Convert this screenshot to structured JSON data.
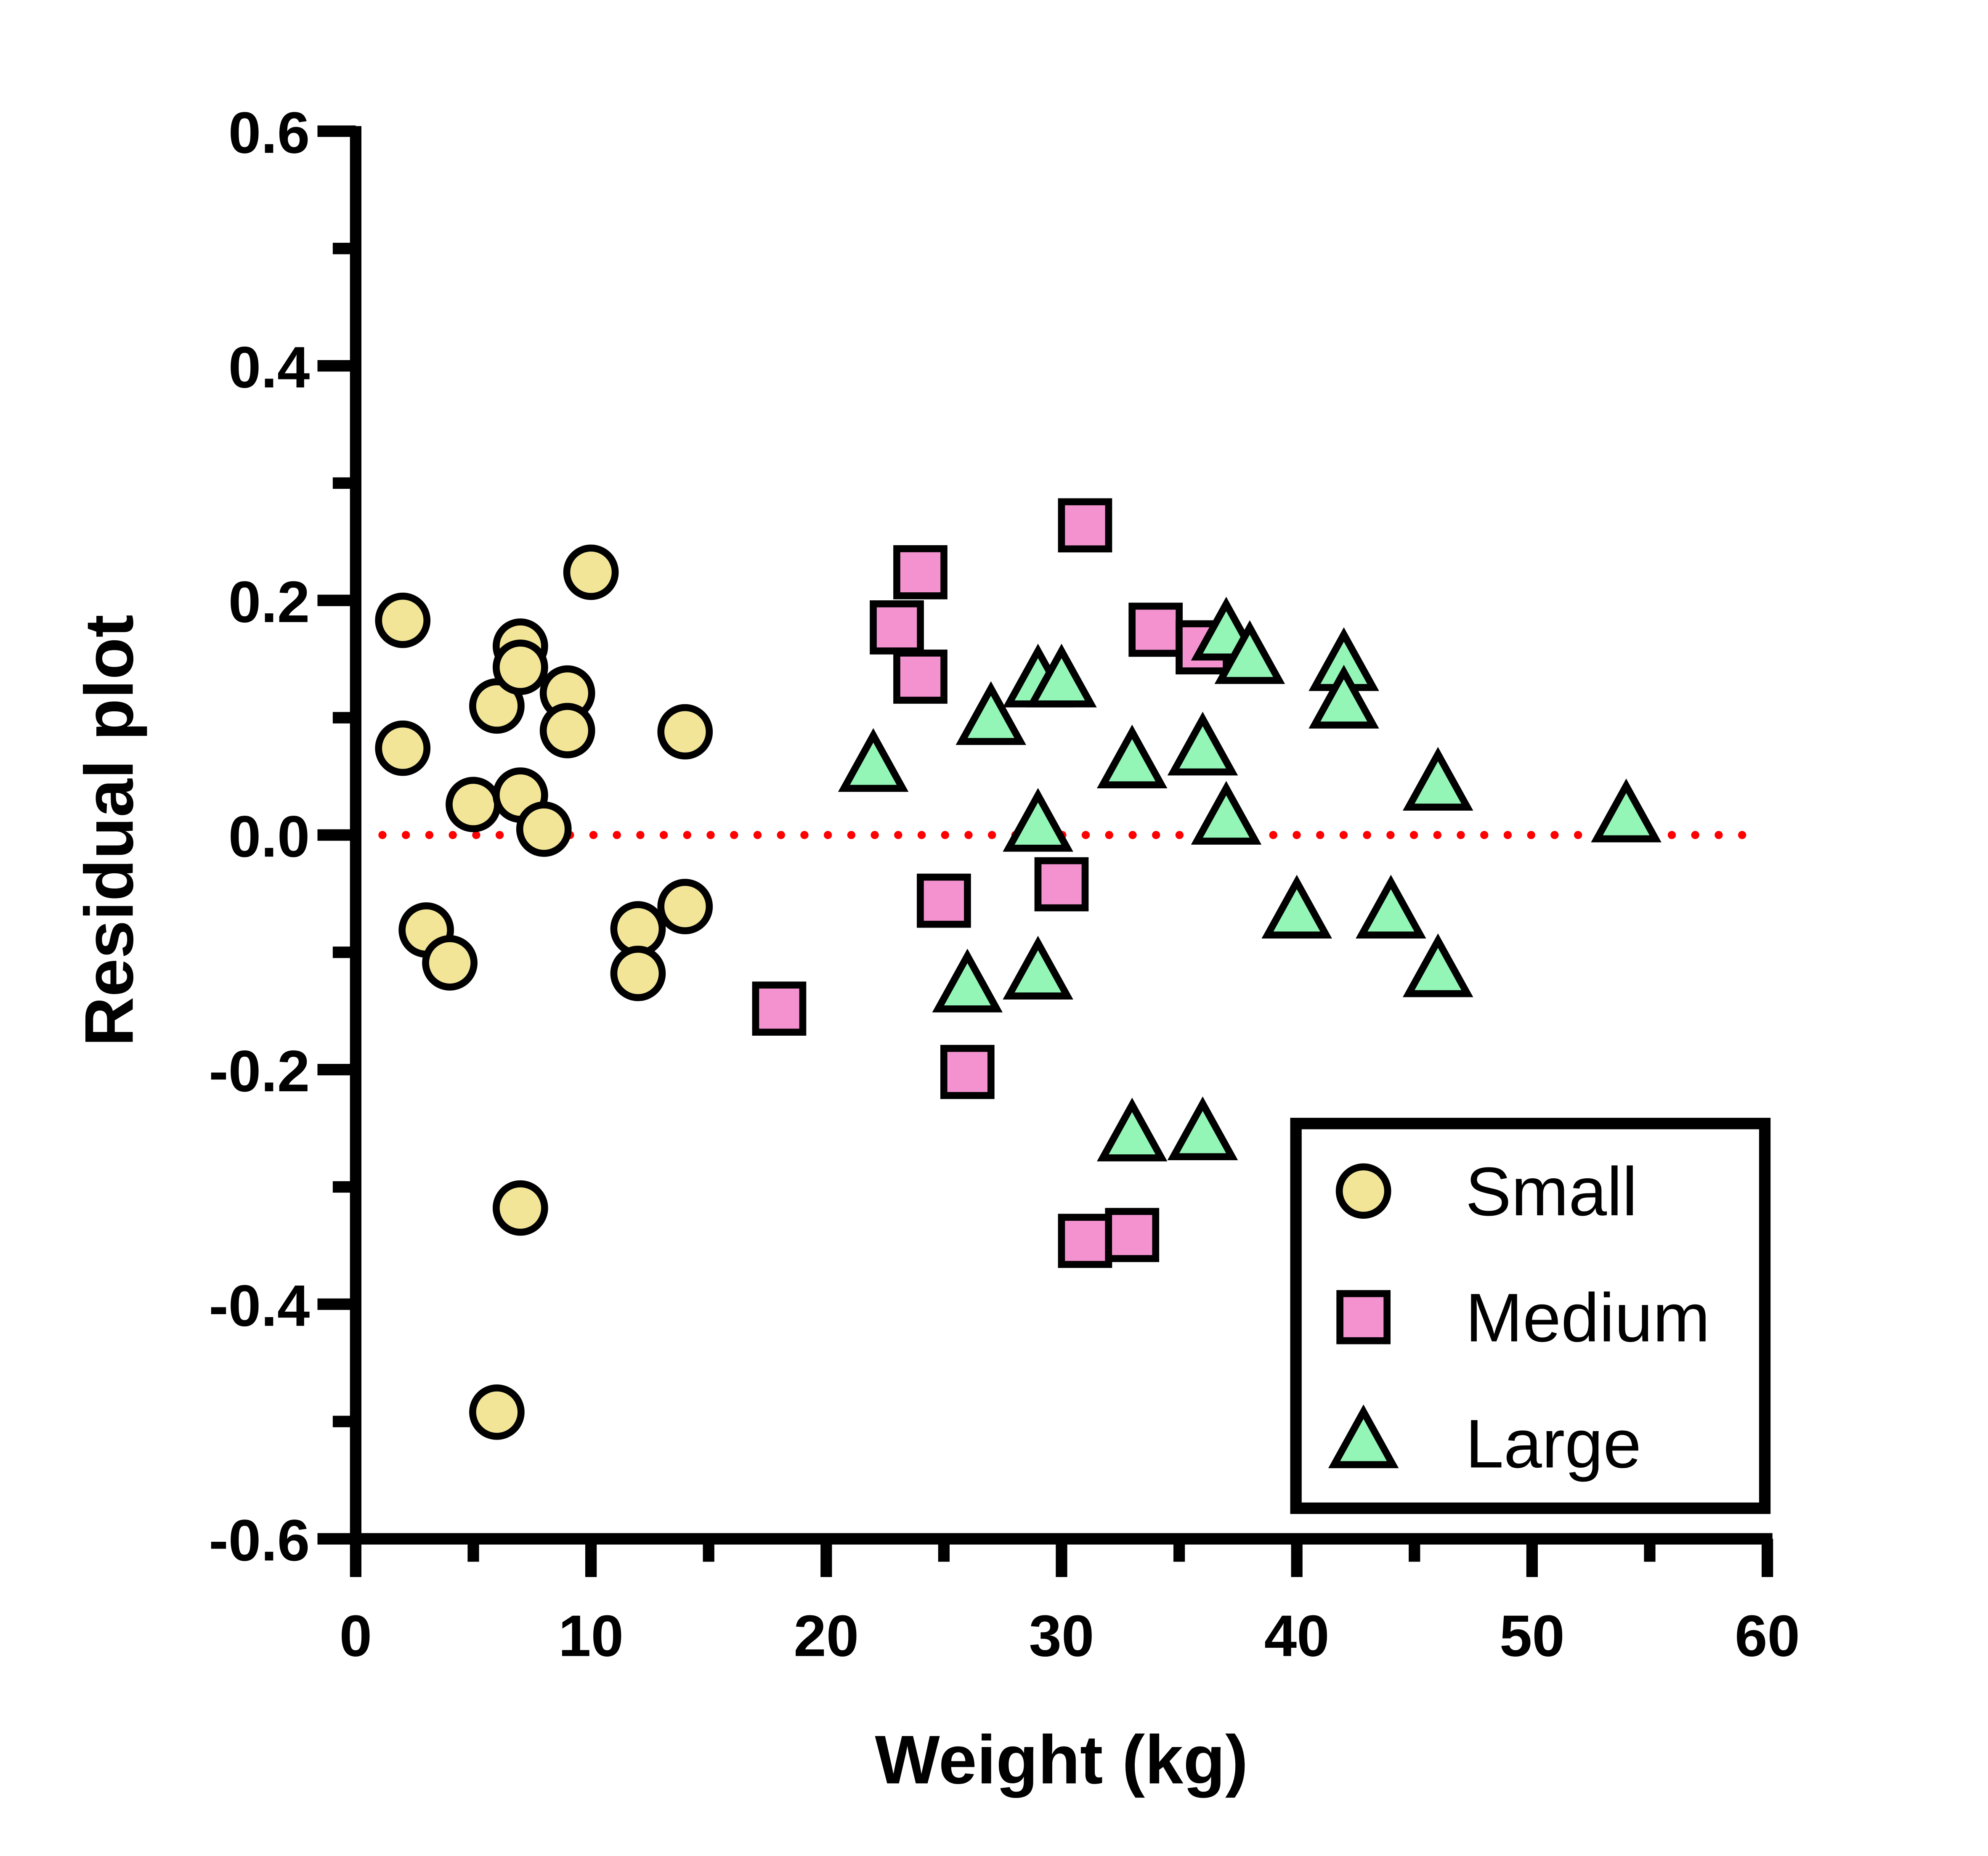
{
  "chart_data": {
    "type": "scatter",
    "title": "",
    "xlabel": "Weight (kg)",
    "ylabel": "Residual plot",
    "xlim": [
      0,
      60
    ],
    "ylim": [
      -0.6,
      0.6
    ],
    "x_ticks": [
      0,
      10,
      20,
      30,
      40,
      50,
      60
    ],
    "x_tick_labels": [
      "0",
      "10",
      "20",
      "30",
      "40",
      "50",
      "60"
    ],
    "y_ticks": [
      -0.6,
      -0.4,
      -0.2,
      0.0,
      0.2,
      0.4,
      0.6
    ],
    "y_tick_labels": [
      "-0.6",
      "-0.4",
      "-0.2",
      "0.0",
      "0.2",
      "0.4",
      "0.6"
    ],
    "grid": false,
    "reference_line": {
      "y": 0.0,
      "style": "dotted",
      "color": "#ff0000"
    },
    "legend": {
      "placement": "bottom-right",
      "boxed": true
    },
    "series": [
      {
        "name": "Small",
        "marker": "circle",
        "fill": "#f3e597",
        "stroke": "#000000",
        "points": [
          [
            2,
            0.183
          ],
          [
            2,
            0.074
          ],
          [
            3,
            -0.081
          ],
          [
            4,
            -0.109
          ],
          [
            5,
            0.026
          ],
          [
            6,
            0.11
          ],
          [
            7,
            0.161
          ],
          [
            7,
            0.143
          ],
          [
            7,
            0.034
          ],
          [
            8,
            0.005
          ],
          [
            9,
            0.121
          ],
          [
            9,
            0.089
          ],
          [
            10,
            0.224
          ],
          [
            12,
            -0.08
          ],
          [
            12,
            -0.118
          ],
          [
            14,
            0.088
          ],
          [
            14,
            -0.061
          ],
          [
            7,
            -0.318
          ],
          [
            6,
            -0.492
          ]
        ]
      },
      {
        "name": "Medium",
        "marker": "square",
        "fill": "#f492d0",
        "stroke": "#000000",
        "points": [
          [
            24,
            0.224
          ],
          [
            23,
            0.177
          ],
          [
            24,
            0.135
          ],
          [
            31,
            0.264
          ],
          [
            34,
            0.175
          ],
          [
            36,
            0.16
          ],
          [
            25,
            -0.056
          ],
          [
            30,
            -0.042
          ],
          [
            18,
            -0.148
          ],
          [
            26,
            -0.202
          ],
          [
            31,
            -0.346
          ],
          [
            33,
            -0.341
          ]
        ]
      },
      {
        "name": "Large",
        "marker": "triangle",
        "fill": "#93f5b6",
        "stroke": "#000000",
        "points": [
          [
            22,
            0.058
          ],
          [
            27,
            0.098
          ],
          [
            29,
            0.13
          ],
          [
            30,
            0.13
          ],
          [
            29,
            0.007
          ],
          [
            26,
            -0.13
          ],
          [
            29,
            -0.119
          ],
          [
            33,
            0.061
          ],
          [
            33,
            -0.257
          ],
          [
            36,
            0.072
          ],
          [
            36,
            -0.256
          ],
          [
            37,
            0.17
          ],
          [
            38,
            0.15
          ],
          [
            37,
            0.013
          ],
          [
            40,
            -0.067
          ],
          [
            42,
            0.144
          ],
          [
            42,
            0.112
          ],
          [
            44,
            -0.067
          ],
          [
            46,
            0.042
          ],
          [
            46,
            -0.117
          ],
          [
            54,
            0.015
          ]
        ]
      }
    ]
  }
}
